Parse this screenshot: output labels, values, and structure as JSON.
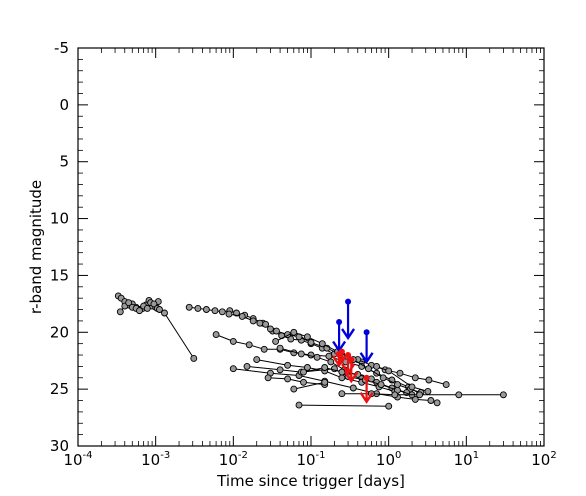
{
  "chart_data": {
    "type": "scatter",
    "title": "",
    "xlabel": "Time since trigger [days]",
    "ylabel": "r-band magnitude",
    "xscale": "log",
    "xlim": [
      0.0001,
      100
    ],
    "ylim": [
      30,
      -5
    ],
    "y_inverted": true,
    "x_ticks": [
      {
        "exp": "-4"
      },
      {
        "exp": "-3"
      },
      {
        "exp": "-2"
      },
      {
        "exp": "-1"
      },
      {
        "exp": "0"
      },
      {
        "exp": "1"
      },
      {
        "exp": "2"
      }
    ],
    "x_tick_base": "10",
    "y_ticks": [
      "-5",
      "0",
      "5",
      "10",
      "15",
      "20",
      "25",
      "30"
    ],
    "grid": false,
    "colors": {
      "light_curve_marker": "#999999",
      "light_curve_line": "#000000",
      "upper_limit_blue": "#0000dd",
      "upper_limit_red": "#ee1111"
    },
    "series": [
      {
        "points": [
          [
            0.00033,
            16.8
          ],
          [
            0.00036,
            17.0
          ],
          [
            0.0004,
            17.3
          ],
          [
            0.00045,
            17.6
          ],
          [
            0.0005,
            17.5
          ],
          [
            0.00056,
            17.8
          ],
          [
            0.00062,
            18.0
          ],
          [
            0.00068,
            17.9
          ],
          [
            0.00075,
            17.6
          ],
          [
            0.00082,
            17.2
          ],
          [
            0.0009,
            17.7
          ],
          [
            0.001,
            17.8
          ],
          [
            0.00108,
            17.3
          ]
        ]
      },
      {
        "points": [
          [
            0.00035,
            18.2
          ],
          [
            0.0004,
            17.7
          ],
          [
            0.00045,
            17.4
          ],
          [
            0.0005,
            17.8
          ],
          [
            0.00056,
            17.9
          ],
          [
            0.00062,
            18.1
          ],
          [
            0.0007,
            17.7
          ],
          [
            0.00078,
            17.9
          ],
          [
            0.00086,
            17.4
          ],
          [
            0.00095,
            17.5
          ],
          [
            0.00105,
            17.9
          ],
          [
            0.00112,
            18.0
          ]
        ]
      },
      {
        "points": [
          [
            0.0013,
            18.3
          ],
          [
            0.0031,
            22.3
          ]
        ]
      },
      {
        "points": [
          [
            0.0027,
            17.8
          ],
          [
            0.0035,
            17.9
          ],
          [
            0.0045,
            18.0
          ],
          [
            0.0058,
            18.1
          ],
          [
            0.0072,
            18.2
          ],
          [
            0.009,
            18.1
          ],
          [
            0.011,
            18.3
          ],
          [
            0.014,
            18.5
          ],
          [
            0.018,
            18.8
          ],
          [
            0.024,
            19.2
          ],
          [
            0.032,
            19.9
          ],
          [
            0.042,
            20.3
          ],
          [
            0.055,
            20.6
          ],
          [
            0.075,
            20.7
          ],
          [
            0.1,
            21.0
          ],
          [
            0.14,
            21.4
          ],
          [
            0.2,
            21.9
          ],
          [
            0.3,
            22.3
          ],
          [
            0.45,
            22.6
          ]
        ]
      },
      {
        "points": [
          [
            0.0088,
            18.4
          ],
          [
            0.013,
            18.6
          ],
          [
            0.018,
            19.0
          ],
          [
            0.022,
            19.2
          ],
          [
            0.026,
            19.3
          ],
          [
            0.03,
            19.7
          ],
          [
            0.036,
            19.9
          ],
          [
            0.05,
            20.2
          ],
          [
            0.07,
            20.4
          ],
          [
            0.1,
            20.9
          ],
          [
            0.16,
            21.4
          ],
          [
            0.25,
            22.0
          ],
          [
            0.4,
            22.4
          ],
          [
            0.6,
            22.9
          ],
          [
            0.9,
            23.3
          ],
          [
            1.4,
            23.6
          ],
          [
            2.2,
            24.0
          ],
          [
            3.3,
            24.2
          ],
          [
            5.5,
            24.6
          ]
        ]
      },
      {
        "points": [
          [
            0.006,
            20.2
          ],
          [
            0.01,
            20.8
          ],
          [
            0.016,
            21.1
          ],
          [
            0.025,
            21.5
          ],
          [
            0.04,
            21.5
          ],
          [
            0.06,
            21.8
          ],
          [
            0.1,
            22.0
          ],
          [
            0.17,
            22.1
          ],
          [
            0.28,
            22.6
          ],
          [
            0.45,
            23.0
          ],
          [
            0.7,
            23.6
          ],
          [
            1.1,
            24.2
          ],
          [
            1.8,
            24.8
          ],
          [
            2.5,
            25.4
          ]
        ]
      },
      {
        "points": [
          [
            0.035,
            20.8
          ],
          [
            0.06,
            20.0
          ],
          [
            0.09,
            20.4
          ],
          [
            0.14,
            21.0
          ],
          [
            0.22,
            21.7
          ],
          [
            0.35,
            22.4
          ],
          [
            0.55,
            23.2
          ],
          [
            0.85,
            24.0
          ],
          [
            1.3,
            24.6
          ],
          [
            1.9,
            25.0
          ],
          [
            2.6,
            25.3
          ]
        ]
      },
      {
        "points": [
          [
            0.04,
            21.4
          ],
          [
            0.075,
            21.9
          ],
          [
            0.12,
            22.2
          ],
          [
            0.18,
            22.6
          ],
          [
            0.27,
            23.3
          ],
          [
            0.45,
            24.0
          ],
          [
            0.7,
            24.4
          ],
          [
            1.1,
            24.9
          ],
          [
            1.7,
            25.3
          ]
        ]
      },
      {
        "points": [
          [
            0.02,
            22.4
          ],
          [
            0.05,
            22.9
          ],
          [
            0.09,
            23.1
          ],
          [
            0.15,
            23.4
          ],
          [
            0.25,
            24.0
          ],
          [
            0.45,
            24.4
          ],
          [
            0.75,
            24.8
          ],
          [
            1.2,
            25.2
          ]
        ]
      },
      {
        "points": [
          [
            0.01,
            23.2
          ],
          [
            0.03,
            23.6
          ],
          [
            0.07,
            23.8
          ],
          [
            0.15,
            24.3
          ],
          [
            0.35,
            24.9
          ],
          [
            0.7,
            25.4
          ],
          [
            1.3,
            25.7
          ],
          [
            2.2,
            25.9
          ],
          [
            3.5,
            26.0
          ],
          [
            4.2,
            26.2
          ]
        ]
      },
      {
        "points": [
          [
            0.015,
            23.0
          ],
          [
            0.04,
            23.3
          ],
          [
            0.075,
            23.5
          ],
          [
            0.2,
            23.2
          ],
          [
            0.3,
            23.9
          ],
          [
            0.5,
            24.2
          ],
          [
            0.8,
            24.6
          ],
          [
            1.3,
            25.1
          ],
          [
            2.0,
            25.5
          ]
        ]
      },
      {
        "points": [
          [
            0.028,
            24.0
          ],
          [
            0.05,
            24.1
          ],
          [
            0.08,
            24.4
          ],
          [
            0.15,
            24.6
          ]
        ]
      },
      {
        "points": [
          [
            0.08,
            23.5
          ],
          [
            0.15,
            23.1
          ],
          [
            0.25,
            23.5
          ],
          [
            0.4,
            23.7
          ],
          [
            0.6,
            24.1
          ]
        ]
      },
      {
        "points": [
          [
            0.06,
            25.0
          ],
          [
            0.15,
            24.4
          ]
        ]
      },
      {
        "points": [
          [
            0.25,
            25.4
          ],
          [
            0.6,
            25.4
          ],
          [
            1.2,
            25.5
          ],
          [
            2.5,
            25.5
          ],
          [
            8.0,
            25.5
          ],
          [
            30.0,
            25.5
          ]
        ]
      },
      {
        "points": [
          [
            0.07,
            26.4
          ],
          [
            1.0,
            26.5
          ]
        ]
      },
      {
        "points": [
          [
            0.7,
            23.0
          ],
          [
            1.0,
            23.4
          ],
          [
            2.0,
            24.8
          ],
          [
            3.2,
            25.2
          ]
        ]
      }
    ],
    "upper_limits": [
      {
        "color": "blue",
        "x": 0.3,
        "y_start": 17.3,
        "y_end": 20.5
      },
      {
        "color": "blue",
        "x": 0.23,
        "y_start": 19.1,
        "y_end": 21.6
      },
      {
        "color": "blue",
        "x": 0.52,
        "y_start": 20.0,
        "y_end": 22.6
      },
      {
        "color": "red",
        "x": 0.23,
        "y_start": 21.9,
        "y_end": 22.9
      },
      {
        "color": "red",
        "x": 0.3,
        "y_start": 22.0,
        "y_end": 23.6
      },
      {
        "color": "red",
        "x": 0.25,
        "y_start": 21.7,
        "y_end": 22.6
      },
      {
        "color": "red",
        "x": 0.33,
        "y_start": 22.4,
        "y_end": 24.3
      },
      {
        "color": "red",
        "x": 0.52,
        "y_start": 24.0,
        "y_end": 26.1
      }
    ]
  }
}
